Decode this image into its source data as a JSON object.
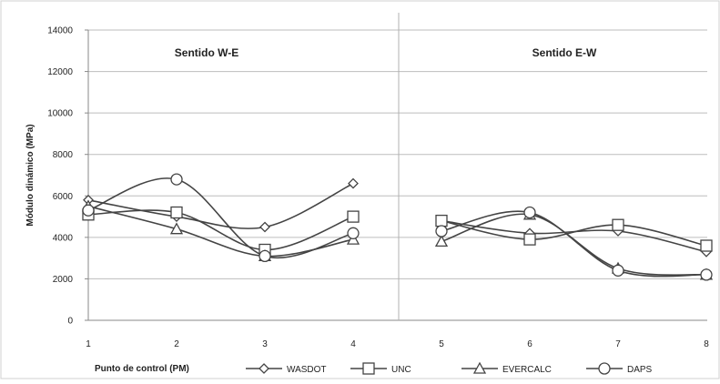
{
  "chart_data": {
    "type": "line",
    "panel_titles": [
      "Sentido W-E",
      "Sentido E-W"
    ],
    "xlabel": "Punto de control (PM)",
    "ylabel": "Módulo dinámico (MPa)",
    "ylim": [
      0,
      14000
    ],
    "yticks": [
      "0",
      "2000",
      "4000",
      "6000",
      "8000",
      "10000",
      "12000",
      "14000"
    ],
    "x": [
      1,
      2,
      3,
      4,
      5,
      6,
      7,
      8
    ],
    "xtick_labels": [
      "1",
      "2",
      "3",
      "4",
      "5",
      "6",
      "7",
      "8"
    ],
    "grid": "horizontal",
    "legend_position": "bottom",
    "series": [
      {
        "name": "WASDOT",
        "marker": "diamond",
        "color": "#444444",
        "groups": [
          {
            "x": [
              1,
              2,
              3,
              4
            ],
            "y": [
              5800,
              5000,
              4500,
              6600
            ]
          },
          {
            "x": [
              5,
              6,
              7,
              8
            ],
            "y": [
              4800,
              4200,
              4300,
              3300
            ]
          }
        ]
      },
      {
        "name": "UNC",
        "marker": "square",
        "color": "#444444",
        "groups": [
          {
            "x": [
              1,
              2,
              3,
              4
            ],
            "y": [
              5100,
              5200,
              3400,
              5000
            ]
          },
          {
            "x": [
              5,
              6,
              7,
              8
            ],
            "y": [
              4800,
              3900,
              4600,
              3600
            ]
          }
        ]
      },
      {
        "name": "EVERCALC",
        "marker": "triangle",
        "color": "#444444",
        "groups": [
          {
            "x": [
              1,
              2,
              3,
              4
            ],
            "y": [
              5500,
              4400,
              3100,
              3900
            ]
          },
          {
            "x": [
              5,
              6,
              7,
              8
            ],
            "y": [
              3800,
              5100,
              2500,
              2200
            ]
          }
        ]
      },
      {
        "name": "DAPS",
        "marker": "circle",
        "color": "#444444",
        "groups": [
          {
            "x": [
              1,
              2,
              3,
              4
            ],
            "y": [
              5300,
              6800,
              3100,
              4200
            ]
          },
          {
            "x": [
              5,
              6,
              7,
              8
            ],
            "y": [
              4300,
              5200,
              2400,
              2200
            ]
          }
        ]
      }
    ]
  }
}
